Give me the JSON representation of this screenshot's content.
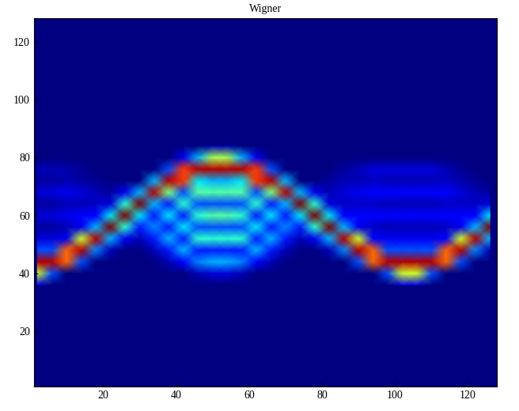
{
  "chart_data": {
    "type": "heatmap",
    "title": "Wigner",
    "xlim": [
      1,
      128
    ],
    "ylim": [
      1,
      128
    ],
    "xticks": [
      20,
      40,
      60,
      80,
      100,
      120
    ],
    "yticks": [
      20,
      40,
      60,
      80,
      100,
      120
    ],
    "x": [
      2,
      6,
      10,
      14,
      18,
      22,
      26,
      30,
      34,
      38,
      42,
      46,
      50,
      54,
      58,
      62,
      66,
      70,
      74,
      78,
      82,
      86,
      90,
      94,
      98,
      102,
      106,
      110,
      114,
      118,
      122,
      126
    ],
    "y": [
      36,
      40,
      44,
      48,
      52,
      56,
      60,
      64,
      68,
      72,
      76,
      80,
      84
    ],
    "cells_by_x": [
      [
        0.1,
        0.6,
        0.95,
        0.2,
        0.08,
        0.03,
        0.08,
        0.03,
        0.08,
        0.03,
        0.05,
        0,
        0
      ],
      [
        0,
        0.2,
        0.95,
        0.2,
        0.08,
        0.03,
        0.08,
        0.03,
        0.08,
        0.03,
        0.05,
        0,
        0
      ],
      [
        0,
        0,
        0.8,
        0.8,
        0.1,
        0.05,
        0.1,
        0.05,
        0.1,
        0.04,
        0.04,
        0,
        0
      ],
      [
        0,
        0,
        0.2,
        0.95,
        0.6,
        0.1,
        0.12,
        0.05,
        0.08,
        0.03,
        0.02,
        0,
        0
      ],
      [
        0,
        0,
        0,
        0.25,
        0.95,
        0.3,
        0.12,
        0.06,
        0.05,
        0.02,
        0,
        0,
        0
      ],
      [
        0,
        0,
        0,
        0.05,
        0.3,
        1.0,
        0.35,
        0.08,
        0.03,
        0,
        0,
        0,
        0
      ],
      [
        0,
        0,
        0,
        0,
        0.1,
        0.4,
        1.0,
        0.4,
        0.1,
        0,
        0,
        0,
        0
      ],
      [
        0,
        0,
        0,
        0,
        0.05,
        0.15,
        0.35,
        1.0,
        0.3,
        0,
        0,
        0,
        0
      ],
      [
        0,
        0,
        0,
        0.05,
        0.15,
        0.25,
        0.15,
        0.3,
        0.95,
        0.3,
        0,
        0,
        0
      ],
      [
        0,
        0,
        0.05,
        0.15,
        0.3,
        0.15,
        0.35,
        0.15,
        0.5,
        0.95,
        0.2,
        0,
        0
      ],
      [
        0,
        0,
        0.12,
        0.3,
        0.15,
        0.35,
        0.15,
        0.4,
        0.2,
        0.85,
        0.85,
        0.1,
        0
      ],
      [
        0,
        0.05,
        0.25,
        0.15,
        0.4,
        0.2,
        0.4,
        0.2,
        0.45,
        0.35,
        0.95,
        0.3,
        0
      ],
      [
        0,
        0.08,
        0.3,
        0.15,
        0.4,
        0.2,
        0.45,
        0.2,
        0.45,
        0.3,
        0.95,
        0.55,
        0.05
      ],
      [
        0,
        0.08,
        0.3,
        0.15,
        0.4,
        0.2,
        0.45,
        0.2,
        0.45,
        0.3,
        0.95,
        0.55,
        0.05
      ],
      [
        0,
        0.05,
        0.25,
        0.15,
        0.4,
        0.2,
        0.4,
        0.2,
        0.45,
        0.35,
        0.95,
        0.3,
        0
      ],
      [
        0,
        0,
        0.12,
        0.3,
        0.15,
        0.35,
        0.15,
        0.4,
        0.2,
        0.85,
        0.85,
        0.1,
        0
      ],
      [
        0,
        0,
        0.05,
        0.15,
        0.3,
        0.15,
        0.35,
        0.15,
        0.5,
        0.95,
        0.2,
        0,
        0
      ],
      [
        0,
        0,
        0,
        0.05,
        0.15,
        0.25,
        0.15,
        0.3,
        0.95,
        0.3,
        0,
        0,
        0
      ],
      [
        0,
        0,
        0,
        0,
        0.05,
        0.15,
        0.35,
        1.0,
        0.3,
        0,
        0,
        0,
        0
      ],
      [
        0,
        0,
        0,
        0,
        0.1,
        0.4,
        1.0,
        0.4,
        0.1,
        0,
        0,
        0,
        0
      ],
      [
        0,
        0,
        0,
        0.05,
        0.3,
        1.0,
        0.35,
        0.08,
        0.05,
        0.03,
        0,
        0,
        0
      ],
      [
        0,
        0,
        0,
        0.25,
        0.95,
        0.3,
        0.12,
        0.06,
        0.08,
        0.05,
        0.03,
        0,
        0
      ],
      [
        0,
        0,
        0.2,
        0.95,
        0.6,
        0.1,
        0.12,
        0.06,
        0.1,
        0.05,
        0.05,
        0,
        0
      ],
      [
        0,
        0,
        0.8,
        0.8,
        0.12,
        0.06,
        0.12,
        0.06,
        0.12,
        0.06,
        0.08,
        0,
        0
      ],
      [
        0,
        0.2,
        0.95,
        0.2,
        0.1,
        0.05,
        0.12,
        0.05,
        0.12,
        0.05,
        0.08,
        0,
        0
      ],
      [
        0.1,
        0.6,
        0.95,
        0.2,
        0.1,
        0.05,
        0.12,
        0.05,
        0.12,
        0.05,
        0.08,
        0,
        0
      ],
      [
        0.1,
        0.6,
        0.95,
        0.2,
        0.1,
        0.05,
        0.12,
        0.05,
        0.12,
        0.05,
        0.08,
        0,
        0
      ],
      [
        0,
        0.2,
        0.95,
        0.2,
        0.1,
        0.05,
        0.12,
        0.05,
        0.12,
        0.05,
        0.08,
        0,
        0
      ],
      [
        0,
        0,
        0.8,
        0.8,
        0.12,
        0.06,
        0.12,
        0.06,
        0.12,
        0.06,
        0.05,
        0,
        0
      ],
      [
        0,
        0,
        0.2,
        0.95,
        0.6,
        0.1,
        0.12,
        0.06,
        0.08,
        0.04,
        0.02,
        0,
        0
      ],
      [
        0,
        0,
        0,
        0.25,
        0.95,
        0.3,
        0.12,
        0.06,
        0.05,
        0.02,
        0,
        0,
        0
      ],
      [
        0,
        0,
        0,
        0.05,
        0.3,
        1.0,
        0.35,
        0.08,
        0.03,
        0,
        0,
        0,
        0
      ]
    ]
  }
}
